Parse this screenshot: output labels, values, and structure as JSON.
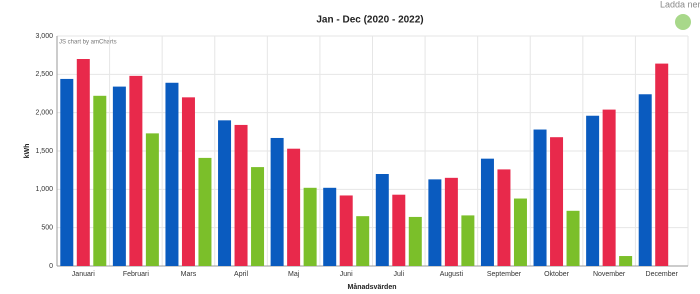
{
  "download_label": "Ladda ner",
  "chart_data": {
    "type": "bar",
    "title": "Jan - Dec (2020 - 2022)",
    "credit": "JS chart by amCharts",
    "y_label": "kWh",
    "x_label": "Månadsvärden",
    "categories": [
      "Januari",
      "Februari",
      "Mars",
      "April",
      "Maj",
      "Juni",
      "Juli",
      "Augusti",
      "September",
      "Oktober",
      "November",
      "December"
    ],
    "series": [
      {
        "color": "#0a5bbf",
        "values": [
          2440,
          2340,
          2390,
          1900,
          1670,
          1020,
          1200,
          1130,
          1400,
          1780,
          1960,
          2240
        ]
      },
      {
        "color": "#e8294b",
        "values": [
          2700,
          2480,
          2200,
          1840,
          1530,
          920,
          930,
          1150,
          1260,
          1680,
          2040,
          2640
        ]
      },
      {
        "color": "#7bbf2a",
        "values": [
          2220,
          1730,
          1410,
          1290,
          1020,
          650,
          640,
          660,
          880,
          720,
          130,
          null
        ]
      }
    ],
    "ylim": [
      0,
      3000
    ],
    "yticks": [
      0,
      500,
      {
        "value": 1000,
        "label": "1,000"
      },
      {
        "value": 1500,
        "label": "1,500"
      },
      {
        "value": 2000,
        "label": "2,000"
      },
      {
        "value": 2500,
        "label": "2,500"
      },
      {
        "value": 3000,
        "label": "3,000"
      }
    ],
    "grid": true
  }
}
